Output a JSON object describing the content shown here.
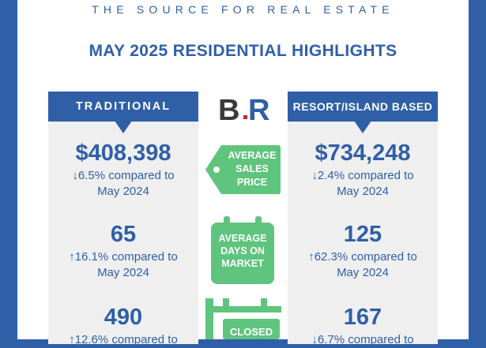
{
  "header": {
    "tagline": "THE SOURCE FOR REAL ESTATE",
    "headline": "MAY 2025 RESIDENTIAL HIGHLIGHTS"
  },
  "colors": {
    "brand_blue": "#2f5fa7",
    "green": "#5fc47d",
    "panel_gray": "#efefef"
  },
  "columns": {
    "traditional": {
      "title": "TRADITIONAL",
      "price": {
        "value": "$408,398",
        "arrow": "down",
        "change": "6.5% compared to",
        "period": "May 2024"
      },
      "days": {
        "value": "65",
        "arrow": "up",
        "change": "16.1% compared to",
        "period": "May 2024"
      },
      "closed": {
        "value": "490",
        "arrow": "up",
        "change": "12.6% compared to"
      }
    },
    "resort": {
      "title": "RESORT/ISLAND BASED",
      "price": {
        "value": "$734,248",
        "arrow": "down",
        "change": "2.4% compared to",
        "period": "May 2024"
      },
      "days": {
        "value": "125",
        "arrow": "up",
        "change": "62.3% compared to",
        "period": "May 2024"
      },
      "closed": {
        "value": "167",
        "arrow": "down",
        "change": "6.7% compared to"
      }
    }
  },
  "badges": {
    "price": [
      "AVERAGE",
      "SALES",
      "PRICE"
    ],
    "days": [
      "AVERAGE",
      "DAYS ON",
      "MARKET"
    ],
    "closed": "CLOSED"
  },
  "logo": {
    "letters": "BR"
  },
  "icons": {
    "down": "arrow-down-icon",
    "up": "arrow-up-icon"
  }
}
